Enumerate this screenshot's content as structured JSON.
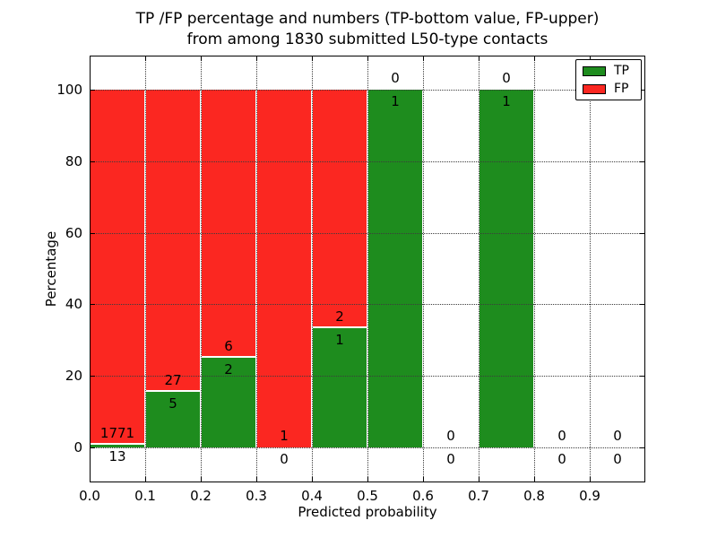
{
  "title": {
    "line1": "TP /FP percentage and numbers (TP-bottom value, FP-upper)",
    "line2": "from among 1830 submitted L50-type contacts"
  },
  "axes": {
    "xlabel": "Predicted probability",
    "ylabel": "Percentage"
  },
  "legend": {
    "position": "upper right",
    "items": [
      {
        "label": "TP",
        "color": "#1e8c1e"
      },
      {
        "label": "FP",
        "color": "#fb2721"
      }
    ]
  },
  "colors": {
    "tp_green": "#1e8c1e",
    "fp_red": "#fb2721",
    "grid": "#3c3c3c",
    "axis": "#000000",
    "background": "#ffffff",
    "bar_edge": "#ffffff"
  },
  "chart_data": {
    "type": "bar",
    "stacked": true,
    "title": "TP /FP percentage and numbers (TP-bottom value, FP-upper) from among 1830 submitted L50-type contacts",
    "xlabel": "Predicted probability",
    "ylabel": "Percentage",
    "xlim": [
      0.0,
      1.0
    ],
    "ylim": [
      -9.5,
      109.5
    ],
    "x_tick_values": [
      0.0,
      0.1,
      0.2,
      0.3,
      0.4,
      0.5,
      0.6,
      0.7,
      0.8,
      0.9
    ],
    "x_tick_labels": [
      "0.0",
      "0.1",
      "0.2",
      "0.3",
      "0.4",
      "0.5",
      "0.6",
      "0.7",
      "0.8",
      "0.9"
    ],
    "y_ticks": [
      0,
      20,
      40,
      60,
      80,
      100
    ],
    "grid": {
      "on": true,
      "style": "dotted",
      "both_axes": true
    },
    "legend_entries": [
      "TP",
      "FP"
    ],
    "total_contacts": 1830,
    "bar_width": 0.1,
    "bins": [
      {
        "start": 0.0,
        "end": 0.1,
        "tp": 13,
        "fp": 1771,
        "tp_pct": 0.73,
        "fp_pct": 99.27
      },
      {
        "start": 0.1,
        "end": 0.2,
        "tp": 5,
        "fp": 27,
        "tp_pct": 15.63,
        "fp_pct": 84.37
      },
      {
        "start": 0.2,
        "end": 0.3,
        "tp": 2,
        "fp": 6,
        "tp_pct": 25.0,
        "fp_pct": 75.0
      },
      {
        "start": 0.3,
        "end": 0.4,
        "tp": 0,
        "fp": 1,
        "tp_pct": 0.0,
        "fp_pct": 100.0
      },
      {
        "start": 0.4,
        "end": 0.5,
        "tp": 1,
        "fp": 2,
        "tp_pct": 33.33,
        "fp_pct": 66.67
      },
      {
        "start": 0.5,
        "end": 0.6,
        "tp": 1,
        "fp": 0,
        "tp_pct": 100.0,
        "fp_pct": 0.0
      },
      {
        "start": 0.6,
        "end": 0.7,
        "tp": 0,
        "fp": 0,
        "tp_pct": null,
        "fp_pct": null
      },
      {
        "start": 0.7,
        "end": 0.8,
        "tp": 1,
        "fp": 0,
        "tp_pct": 100.0,
        "fp_pct": 0.0
      },
      {
        "start": 0.8,
        "end": 0.9,
        "tp": 0,
        "fp": 0,
        "tp_pct": null,
        "fp_pct": null
      },
      {
        "start": 0.9,
        "end": 1.0,
        "tp": 0,
        "fp": 0,
        "tp_pct": null,
        "fp_pct": null
      }
    ]
  }
}
